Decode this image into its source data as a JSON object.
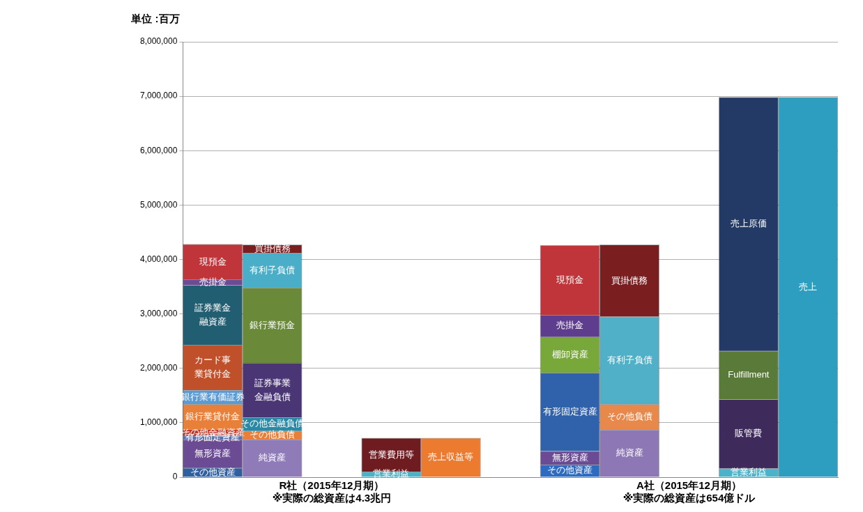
{
  "chart_data": {
    "type": "bar",
    "stacked": true,
    "ylabel": "単位 :百万",
    "grid": "y",
    "categories": [
      null,
      null,
      "R社（2015年12月期）\n※実際の総資産は4.3兆円",
      null,
      null,
      null,
      null,
      null,
      "A社（2015年12月期）\n※実際の総資産は654億ドル",
      null,
      null
    ],
    "ylim": [
      0,
      8000000
    ],
    "yticks": [
      0,
      {
        "value": 1000000,
        "label": "1,000,000"
      },
      {
        "value": 2000000,
        "label": "2,000,000"
      },
      {
        "value": 3000000,
        "label": "3,000,000"
      },
      {
        "value": 4000000,
        "label": "4,000,000"
      },
      {
        "value": 5000000,
        "label": "5,000,000"
      },
      {
        "value": 6000000,
        "label": "6,000,000"
      },
      {
        "value": 7000000,
        "label": "7,000,000"
      },
      {
        "value": 8000000,
        "label": "8,000,000"
      }
    ],
    "series": [
      {
        "name": "その他資産",
        "color": "#2e5fa0",
        "values": [
          170000,
          null,
          null,
          null,
          null,
          null,
          null,
          null,
          null,
          null,
          null
        ]
      },
      {
        "name": "無形資産",
        "color": "#6a4b94",
        "values": [
          520000,
          null,
          null,
          null,
          null,
          null,
          null,
          null,
          null,
          null,
          null
        ]
      },
      {
        "name": "有形固定資産",
        "color": "#5a72b0",
        "values": [
          70000,
          null,
          null,
          null,
          null,
          null,
          null,
          null,
          null,
          null,
          null
        ]
      },
      {
        "name": "その他金融資産",
        "color": "#c0392b",
        "values": [
          120000,
          null,
          null,
          null,
          null,
          null,
          null,
          null,
          null,
          null,
          null
        ]
      },
      {
        "name": "銀行業貸付金",
        "color": "#e8803a",
        "values": [
          460000,
          null,
          null,
          null,
          null,
          null,
          null,
          null,
          null,
          null,
          null
        ]
      },
      {
        "name": "銀行業有価証券",
        "color": "#5b9bd5",
        "values": [
          260000,
          null,
          null,
          null,
          null,
          null,
          null,
          null,
          null,
          null,
          null
        ]
      },
      {
        "name": "カード事業貸付金",
        "color": "#c0502a",
        "values": [
          830000,
          null,
          null,
          null,
          null,
          null,
          null,
          null,
          null,
          null,
          null
        ]
      },
      {
        "name": "証券業金融資産",
        "color": "#215e72",
        "values": [
          1100000,
          null,
          null,
          null,
          null,
          null,
          null,
          null,
          null,
          null,
          null
        ]
      },
      {
        "name": "売掛金",
        "color": "#6a4b94",
        "values": [
          100000,
          null,
          null,
          null,
          null,
          null,
          null,
          null,
          null,
          null,
          null
        ]
      },
      {
        "name": "現預金",
        "color": "#c0353a",
        "values": [
          650000,
          null,
          null,
          null,
          null,
          null,
          null,
          null,
          null,
          null,
          null
        ]
      },
      {
        "name": "純資産",
        "color": "#8f7bb8",
        "values": [
          null,
          690000,
          null,
          null,
          null,
          null,
          null,
          null,
          null,
          null,
          null
        ]
      },
      {
        "name": "その他負債",
        "color": "#e8803a",
        "values": [
          null,
          160000,
          null,
          null,
          null,
          null,
          null,
          null,
          null,
          null,
          null
        ]
      },
      {
        "name": "その他金融負債",
        "color": "#2a8aa5",
        "values": [
          null,
          250000,
          null,
          null,
          null,
          null,
          null,
          null,
          null,
          null,
          null
        ]
      },
      {
        "name": "証券事業金融負債",
        "color": "#4a3575",
        "values": [
          null,
          1000000,
          null,
          null,
          null,
          null,
          null,
          null,
          null,
          null,
          null
        ]
      },
      {
        "name": "銀行業預金",
        "color": "#6a8a3a",
        "values": [
          null,
          1380000,
          null,
          null,
          null,
          null,
          null,
          null,
          null,
          null,
          null
        ]
      },
      {
        "name": "有利子負債",
        "color": "#4aaec8",
        "values": [
          null,
          640000,
          null,
          null,
          null,
          null,
          null,
          null,
          null,
          null,
          null
        ]
      },
      {
        "name": "買掛債務",
        "color": "#7a1e20",
        "values": [
          null,
          150000,
          null,
          null,
          null,
          null,
          null,
          null,
          null,
          null,
          null
        ]
      },
      {
        "name": "営業利益",
        "color": "#4ab3c8",
        "values": [
          null,
          null,
          null,
          100000,
          null,
          null,
          null,
          null,
          null,
          null,
          null
        ]
      },
      {
        "name": "営業費用等",
        "color": "#6e1c20",
        "values": [
          null,
          null,
          null,
          620000,
          null,
          null,
          null,
          null,
          null,
          null,
          null
        ]
      },
      {
        "name": "売上収益等",
        "color": "#ec7b30",
        "values": [
          null,
          null,
          null,
          null,
          720000,
          null,
          null,
          null,
          null,
          null,
          null
        ]
      },
      {
        "name": "その他資産",
        "color": "#2c6bc0",
        "values": [
          null,
          null,
          null,
          null,
          null,
          null,
          230000,
          null,
          null,
          null,
          null
        ]
      },
      {
        "name": "無形資産",
        "color": "#6a4b94",
        "values": [
          null,
          null,
          null,
          null,
          null,
          null,
          250000,
          null,
          null,
          null,
          null
        ]
      },
      {
        "name": "有形固定資産",
        "color": "#2f62aa",
        "values": [
          null,
          null,
          null,
          null,
          null,
          null,
          1440000,
          null,
          null,
          null,
          null
        ]
      },
      {
        "name": "棚卸資産",
        "color": "#78a73a",
        "values": [
          null,
          null,
          null,
          null,
          null,
          null,
          660000,
          null,
          null,
          null,
          null
        ]
      },
      {
        "name": "売掛金",
        "color": "#5e3d8f",
        "values": [
          null,
          null,
          null,
          null,
          null,
          null,
          400000,
          null,
          null,
          null,
          null
        ]
      },
      {
        "name": "現預金",
        "color": "#c0353a",
        "values": [
          null,
          null,
          null,
          null,
          null,
          null,
          1280000,
          null,
          null,
          null,
          null
        ]
      },
      {
        "name": "純資産",
        "color": "#8d78b5",
        "values": [
          null,
          null,
          null,
          null,
          null,
          null,
          null,
          870000,
          null,
          null,
          null
        ]
      },
      {
        "name": "その他負債",
        "color": "#e8884a",
        "values": [
          null,
          null,
          null,
          null,
          null,
          null,
          null,
          470000,
          null,
          null,
          null
        ]
      },
      {
        "name": "有利子負債",
        "color": "#4fb0c8",
        "values": [
          null,
          null,
          null,
          null,
          null,
          null,
          null,
          1610000,
          null,
          null,
          null
        ]
      },
      {
        "name": "買掛債務",
        "color": "#7a1e20",
        "values": [
          null,
          null,
          null,
          null,
          null,
          null,
          null,
          1320000,
          null,
          null,
          null
        ]
      },
      {
        "name": "営業利益",
        "color": "#4ab3c8",
        "values": [
          null,
          null,
          null,
          null,
          null,
          null,
          null,
          null,
          null,
          160000,
          null
        ]
      },
      {
        "name": "販管費",
        "color": "#3f2a5c",
        "values": [
          null,
          null,
          null,
          null,
          null,
          null,
          null,
          null,
          null,
          1270000,
          null
        ]
      },
      {
        "name": "Fulfillment",
        "color": "#5a7a3a",
        "values": [
          null,
          null,
          null,
          null,
          null,
          null,
          null,
          null,
          null,
          890000,
          null
        ]
      },
      {
        "name": "売上原価",
        "color": "#233a66",
        "values": [
          null,
          null,
          null,
          null,
          null,
          null,
          null,
          null,
          null,
          4660000,
          null
        ]
      },
      {
        "name": "売上",
        "color": "#2e9ec0",
        "values": [
          null,
          null,
          null,
          null,
          null,
          null,
          null,
          null,
          null,
          null,
          6980000
        ]
      }
    ]
  }
}
